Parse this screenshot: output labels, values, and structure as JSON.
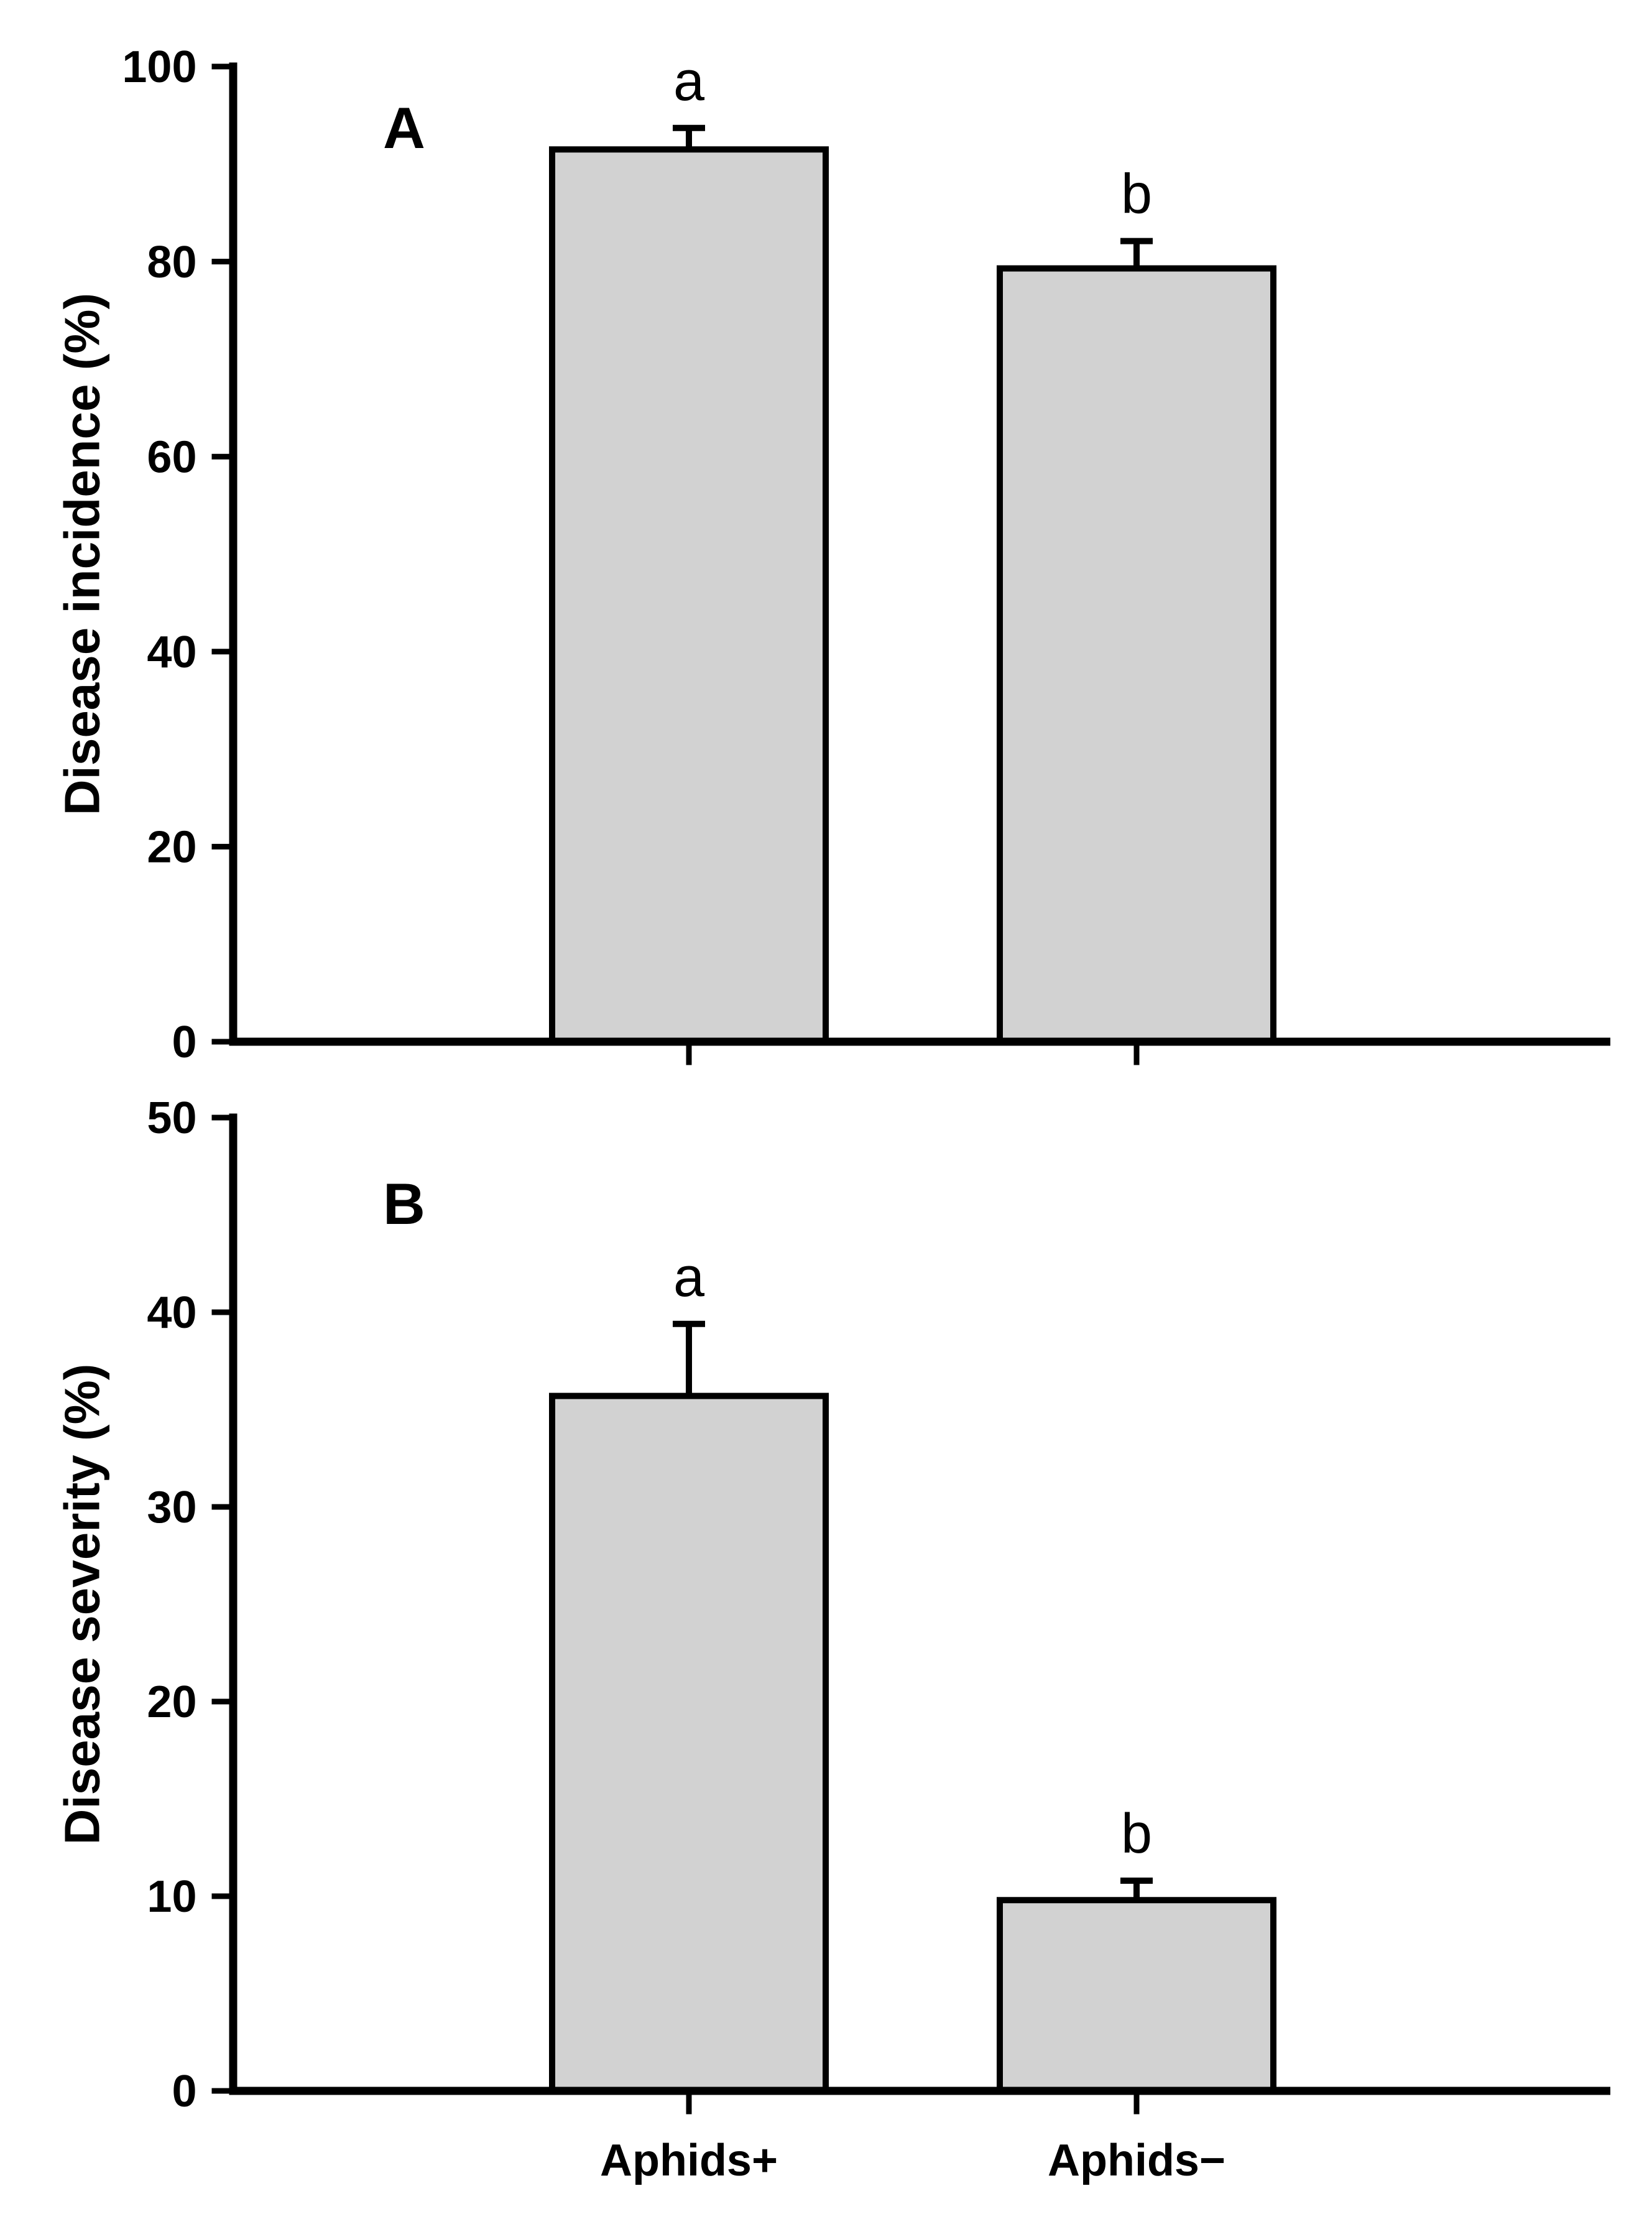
{
  "figure": {
    "background": "#ffffff",
    "bar_fill": "#d2d2d2",
    "bar_stroke": "#000000",
    "axis_color": "#000000",
    "categories": [
      "Aphids+",
      "Aphids−"
    ]
  },
  "chart_data": [
    {
      "type": "bar",
      "panel_letter": "A",
      "categories": [
        "Aphids+",
        "Aphids−"
      ],
      "values": [
        91.5,
        79.3
      ],
      "errors_plus": [
        2.2,
        2.8
      ],
      "error_caps_at": [
        93.7,
        82.1
      ],
      "annotations": [
        "a",
        "b"
      ],
      "title": "",
      "xlabel": "",
      "ylabel": "Disease incidence (%)",
      "ylim": [
        0,
        100
      ],
      "yticks": [
        0,
        20,
        40,
        60,
        80,
        100
      ],
      "ytick_labels": [
        "0",
        "20",
        "40",
        "60",
        "80",
        "100"
      ],
      "show_category_labels": false,
      "grid": false,
      "legend": "none",
      "bar_fill": "#d2d2d2",
      "bar_stroke": "#000000"
    },
    {
      "type": "bar",
      "panel_letter": "B",
      "categories": [
        "Aphids+",
        "Aphids−"
      ],
      "values": [
        35.7,
        9.8
      ],
      "errors_plus": [
        3.7,
        1.0
      ],
      "error_caps_at": [
        39.4,
        10.8
      ],
      "annotations": [
        "a",
        "b"
      ],
      "title": "",
      "xlabel": "",
      "ylabel": "Disease severity (%)",
      "ylim": [
        0,
        50
      ],
      "yticks": [
        0,
        10,
        20,
        30,
        40,
        50
      ],
      "ytick_labels": [
        "0",
        "10",
        "20",
        "30",
        "40",
        "50"
      ],
      "show_category_labels": true,
      "grid": false,
      "legend": "none",
      "bar_fill": "#d2d2d2",
      "bar_stroke": "#000000"
    }
  ]
}
